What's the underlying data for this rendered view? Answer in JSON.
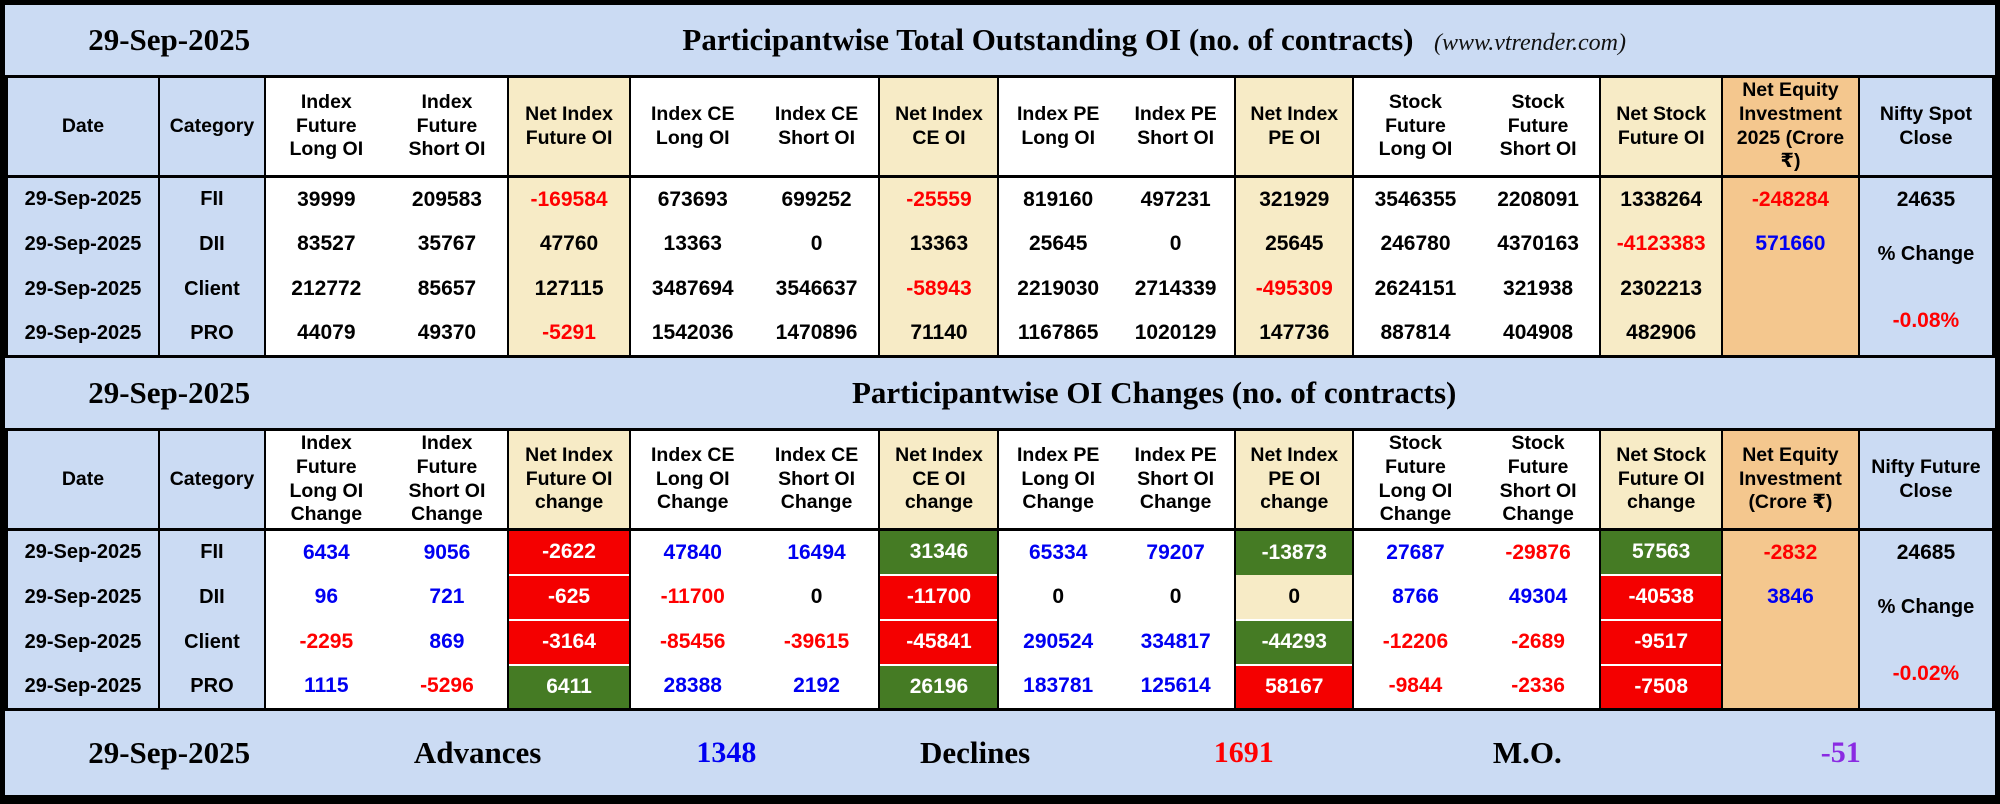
{
  "meta": {
    "date": "29-Sep-2025",
    "site": "(www.vtrender.com)"
  },
  "colors": {
    "panel_blue": "#cbdbf3",
    "net_cream": "#f7ebc6",
    "equity_tan": "#f4c78e",
    "fill_red": "#f40000",
    "fill_green": "#457b24",
    "text_red": "#ff0000",
    "text_blue": "#0000f2",
    "text_violet": "#8a2be2"
  },
  "table1": {
    "title": "Participantwise Total Outstanding OI (no. of contracts)",
    "columns": [
      {
        "label": "Date",
        "bg": "bl"
      },
      {
        "label": "Category",
        "bg": "bl"
      },
      {
        "label": "Index Future Long OI",
        "bg": "w"
      },
      {
        "label": "Index Future Short OI",
        "bg": "w"
      },
      {
        "label": "Net Index Future OI",
        "bg": "c"
      },
      {
        "label": "Index CE Long OI",
        "bg": "w"
      },
      {
        "label": "Index CE Short OI",
        "bg": "w"
      },
      {
        "label": "Net Index CE OI",
        "bg": "c"
      },
      {
        "label": "Index PE Long OI",
        "bg": "w"
      },
      {
        "label": "Index PE Short OI",
        "bg": "w"
      },
      {
        "label": "Net Index PE OI",
        "bg": "c"
      },
      {
        "label": "Stock Future Long OI",
        "bg": "w"
      },
      {
        "label": "Stock Future Short OI",
        "bg": "w"
      },
      {
        "label": "Net Stock Future OI",
        "bg": "c"
      },
      {
        "label": "Net Equity Investment 2025 (Crore ₹)",
        "bg": "t"
      },
      {
        "label": "Nifty Spot Close",
        "bg": "bl"
      }
    ],
    "rows": [
      {
        "date": "29-Sep-2025",
        "category": "FII",
        "cells": [
          [
            "39999",
            "k",
            "w"
          ],
          [
            "209583",
            "k",
            "w"
          ],
          [
            "-169584",
            "r",
            "c"
          ],
          [
            "673693",
            "k",
            "w"
          ],
          [
            "699252",
            "k",
            "w"
          ],
          [
            "-25559",
            "r",
            "c"
          ],
          [
            "819160",
            "k",
            "w"
          ],
          [
            "497231",
            "k",
            "w"
          ],
          [
            "321929",
            "k",
            "c"
          ],
          [
            "3546355",
            "k",
            "w"
          ],
          [
            "2208091",
            "k",
            "w"
          ],
          [
            "1338264",
            "k",
            "c"
          ]
        ],
        "neteq": [
          "-248284",
          "r"
        ],
        "nifty": "24635"
      },
      {
        "date": "29-Sep-2025",
        "category": "DII",
        "cells": [
          [
            "83527",
            "k",
            "w"
          ],
          [
            "35767",
            "k",
            "w"
          ],
          [
            "47760",
            "k",
            "c"
          ],
          [
            "13363",
            "k",
            "w"
          ],
          [
            "0",
            "k",
            "w"
          ],
          [
            "13363",
            "k",
            "c"
          ],
          [
            "25645",
            "k",
            "w"
          ],
          [
            "0",
            "k",
            "w"
          ],
          [
            "25645",
            "k",
            "c"
          ],
          [
            "246780",
            "k",
            "w"
          ],
          [
            "4370163",
            "k",
            "w"
          ],
          [
            "-4123383",
            "r",
            "c"
          ]
        ],
        "neteq": [
          "571660",
          "b"
        ],
        "nifty": null
      },
      {
        "date": "29-Sep-2025",
        "category": "Client",
        "cells": [
          [
            "212772",
            "k",
            "w"
          ],
          [
            "85657",
            "k",
            "w"
          ],
          [
            "127115",
            "k",
            "c"
          ],
          [
            "3487694",
            "k",
            "w"
          ],
          [
            "3546637",
            "k",
            "w"
          ],
          [
            "-58943",
            "r",
            "c"
          ],
          [
            "2219030",
            "k",
            "w"
          ],
          [
            "2714339",
            "k",
            "w"
          ],
          [
            "-495309",
            "r",
            "c"
          ],
          [
            "2624151",
            "k",
            "w"
          ],
          [
            "321938",
            "k",
            "w"
          ],
          [
            "2302213",
            "k",
            "c"
          ]
        ],
        "neteq": null,
        "nifty": null
      },
      {
        "date": "29-Sep-2025",
        "category": "PRO",
        "cells": [
          [
            "44079",
            "k",
            "w"
          ],
          [
            "49370",
            "k",
            "w"
          ],
          [
            "-5291",
            "r",
            "c"
          ],
          [
            "1542036",
            "k",
            "w"
          ],
          [
            "1470896",
            "k",
            "w"
          ],
          [
            "71140",
            "k",
            "c"
          ],
          [
            "1167865",
            "k",
            "w"
          ],
          [
            "1020129",
            "k",
            "w"
          ],
          [
            "147736",
            "k",
            "c"
          ],
          [
            "887814",
            "k",
            "w"
          ],
          [
            "404908",
            "k",
            "w"
          ],
          [
            "482906",
            "k",
            "c"
          ]
        ],
        "neteq": null,
        "nifty": null
      }
    ],
    "pct": {
      "label": "% Change",
      "value": "-0.08%"
    }
  },
  "table2": {
    "title": "Participantwise OI Changes (no. of contracts)",
    "columns": [
      {
        "label": "Date",
        "bg": "bl"
      },
      {
        "label": "Category",
        "bg": "bl"
      },
      {
        "label": "Index Future Long OI Change",
        "bg": "w"
      },
      {
        "label": "Index Future Short OI Change",
        "bg": "w"
      },
      {
        "label": "Net Index Future OI change",
        "bg": "c"
      },
      {
        "label": "Index CE Long OI Change",
        "bg": "w"
      },
      {
        "label": "Index CE Short OI Change",
        "bg": "w"
      },
      {
        "label": "Net Index CE OI change",
        "bg": "c"
      },
      {
        "label": "Index PE Long OI Change",
        "bg": "w"
      },
      {
        "label": "Index PE Short OI Change",
        "bg": "w"
      },
      {
        "label": "Net Index PE OI change",
        "bg": "c"
      },
      {
        "label": "Stock Future Long OI Change",
        "bg": "w"
      },
      {
        "label": "Stock Future Short OI Change",
        "bg": "w"
      },
      {
        "label": "Net Stock Future OI change",
        "bg": "c"
      },
      {
        "label": "Net Equity Investment (Crore ₹)",
        "bg": "t"
      },
      {
        "label": "Nifty Future Close",
        "bg": "bl"
      }
    ],
    "rows": [
      {
        "date": "29-Sep-2025",
        "category": "FII",
        "cells": [
          [
            "6434",
            "b",
            "w"
          ],
          [
            "9056",
            "b",
            "w"
          ],
          [
            "-2622",
            "w",
            "R"
          ],
          [
            "47840",
            "b",
            "w"
          ],
          [
            "16494",
            "b",
            "w"
          ],
          [
            "31346",
            "w",
            "G"
          ],
          [
            "65334",
            "b",
            "w"
          ],
          [
            "79207",
            "b",
            "w"
          ],
          [
            "-13873",
            "w",
            "G"
          ],
          [
            "27687",
            "b",
            "w"
          ],
          [
            "-29876",
            "r",
            "w"
          ],
          [
            "57563",
            "w",
            "G"
          ]
        ],
        "neteq": [
          "-2832",
          "r"
        ],
        "nifty": "24685"
      },
      {
        "date": "29-Sep-2025",
        "category": "DII",
        "cells": [
          [
            "96",
            "b",
            "w"
          ],
          [
            "721",
            "b",
            "w"
          ],
          [
            "-625",
            "w",
            "R"
          ],
          [
            "-11700",
            "r",
            "w"
          ],
          [
            "0",
            "k",
            "w"
          ],
          [
            "-11700",
            "w",
            "R"
          ],
          [
            "0",
            "k",
            "w"
          ],
          [
            "0",
            "k",
            "w"
          ],
          [
            "0",
            "k",
            "c"
          ],
          [
            "8766",
            "b",
            "w"
          ],
          [
            "49304",
            "b",
            "w"
          ],
          [
            "-40538",
            "w",
            "R"
          ]
        ],
        "neteq": [
          "3846",
          "b"
        ],
        "nifty": null
      },
      {
        "date": "29-Sep-2025",
        "category": "Client",
        "cells": [
          [
            "-2295",
            "r",
            "w"
          ],
          [
            "869",
            "b",
            "w"
          ],
          [
            "-3164",
            "w",
            "R"
          ],
          [
            "-85456",
            "r",
            "w"
          ],
          [
            "-39615",
            "r",
            "w"
          ],
          [
            "-45841",
            "w",
            "R"
          ],
          [
            "290524",
            "b",
            "w"
          ],
          [
            "334817",
            "b",
            "w"
          ],
          [
            "-44293",
            "w",
            "G"
          ],
          [
            "-12206",
            "r",
            "w"
          ],
          [
            "-2689",
            "r",
            "w"
          ],
          [
            "-9517",
            "w",
            "R"
          ]
        ],
        "neteq": null,
        "nifty": null
      },
      {
        "date": "29-Sep-2025",
        "category": "PRO",
        "cells": [
          [
            "1115",
            "b",
            "w"
          ],
          [
            "-5296",
            "r",
            "w"
          ],
          [
            "6411",
            "w",
            "G"
          ],
          [
            "28388",
            "b",
            "w"
          ],
          [
            "2192",
            "b",
            "w"
          ],
          [
            "26196",
            "w",
            "G"
          ],
          [
            "183781",
            "b",
            "w"
          ],
          [
            "125614",
            "b",
            "w"
          ],
          [
            "58167",
            "w",
            "R"
          ],
          [
            "-9844",
            "r",
            "w"
          ],
          [
            "-2336",
            "r",
            "w"
          ],
          [
            "-7508",
            "w",
            "R"
          ]
        ],
        "neteq": null,
        "nifty": null
      }
    ],
    "pct": {
      "label": "% Change",
      "value": "-0.02%"
    }
  },
  "footer": {
    "advances_label": "Advances",
    "advances_value": "1348",
    "declines_label": "Declines",
    "declines_value": "1691",
    "mo_label": "M.O.",
    "mo_value": "-51"
  },
  "chart_data": [
    {
      "type": "table",
      "title": "Participantwise Total Outstanding OI (no. of contracts)",
      "columns": [
        "Date",
        "Category",
        "Index Future Long OI",
        "Index Future Short OI",
        "Net Index Future OI",
        "Index CE Long OI",
        "Index CE Short OI",
        "Net Index CE OI",
        "Index PE Long OI",
        "Index PE Short OI",
        "Net Index PE OI",
        "Stock Future Long OI",
        "Stock Future Short OI",
        "Net Stock Future OI",
        "Net Equity Investment 2025 (Crore ₹)",
        "Nifty Spot Close"
      ],
      "rows": [
        [
          "29-Sep-2025",
          "FII",
          39999,
          209583,
          -169584,
          673693,
          699252,
          -25559,
          819160,
          497231,
          321929,
          3546355,
          2208091,
          1338264,
          -248284,
          24635
        ],
        [
          "29-Sep-2025",
          "DII",
          83527,
          35767,
          47760,
          13363,
          0,
          13363,
          25645,
          0,
          25645,
          246780,
          4370163,
          -4123383,
          571660,
          null
        ],
        [
          "29-Sep-2025",
          "Client",
          212772,
          85657,
          127115,
          3487694,
          3546637,
          -58943,
          2219030,
          2714339,
          -495309,
          2624151,
          321938,
          2302213,
          null,
          null
        ],
        [
          "29-Sep-2025",
          "PRO",
          44079,
          49370,
          -5291,
          1542036,
          1470896,
          71140,
          1167865,
          1020129,
          147736,
          887814,
          404908,
          482906,
          null,
          "-0.08%"
        ]
      ]
    },
    {
      "type": "table",
      "title": "Participantwise OI Changes (no. of contracts)",
      "columns": [
        "Date",
        "Category",
        "Index Future Long OI Change",
        "Index Future Short OI Change",
        "Net Index Future OI change",
        "Index CE Long OI Change",
        "Index CE Short OI Change",
        "Net Index CE OI change",
        "Index PE Long OI Change",
        "Index PE Short OI Change",
        "Net Index PE OI change",
        "Stock Future Long OI Change",
        "Stock Future Short OI Change",
        "Net Stock Future OI change",
        "Net Equity Investment (Crore ₹)",
        "Nifty Future Close"
      ],
      "rows": [
        [
          "29-Sep-2025",
          "FII",
          6434,
          9056,
          -2622,
          47840,
          16494,
          31346,
          65334,
          79207,
          -13873,
          27687,
          -29876,
          57563,
          -2832,
          24685
        ],
        [
          "29-Sep-2025",
          "DII",
          96,
          721,
          -625,
          -11700,
          0,
          -11700,
          0,
          0,
          0,
          8766,
          49304,
          -40538,
          3846,
          null
        ],
        [
          "29-Sep-2025",
          "Client",
          -2295,
          869,
          -3164,
          -85456,
          -39615,
          -45841,
          290524,
          334817,
          -44293,
          -12206,
          -2689,
          -9517,
          null,
          null
        ],
        [
          "29-Sep-2025",
          "PRO",
          1115,
          -5296,
          6411,
          28388,
          2192,
          26196,
          183781,
          125614,
          58167,
          -9844,
          -2336,
          -7508,
          null,
          "-0.02%"
        ]
      ]
    },
    {
      "type": "table",
      "title": "Market breadth",
      "columns": [
        "Date",
        "Advances",
        "Declines",
        "M.O."
      ],
      "rows": [
        [
          "29-Sep-2025",
          1348,
          1691,
          -51
        ]
      ]
    }
  ]
}
